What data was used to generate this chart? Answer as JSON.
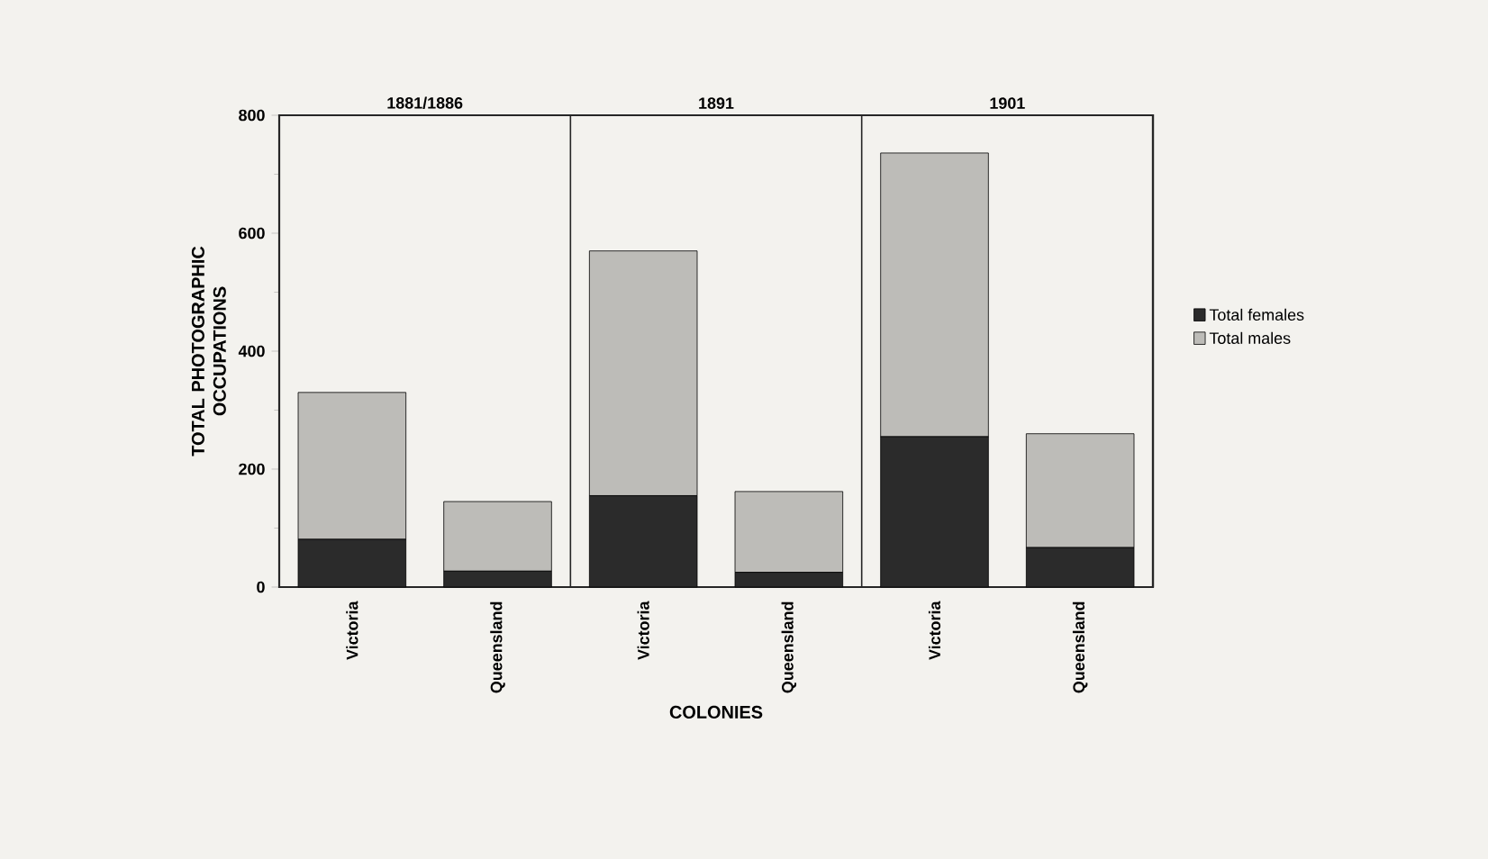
{
  "chart_data": {
    "type": "bar",
    "stacked": true,
    "ylabel": "TOTAL PHOTOGRAPHIC OCCUPATIONS",
    "xlabel": "COLONIES",
    "categories": [
      "Victoria",
      "Queensland",
      "Victoria",
      "Queensland",
      "Victoria",
      "Queensland"
    ],
    "series": [
      {
        "name": "Total females",
        "color": "#2b2b2b",
        "values": [
          81,
          27,
          155,
          25,
          255,
          67
        ]
      },
      {
        "name": "Total males",
        "color": "#bdbcb8",
        "values": [
          249,
          118,
          415,
          137,
          481,
          193
        ]
      }
    ],
    "ylim": [
      0,
      800
    ],
    "yticks": [
      0,
      200,
      400,
      600,
      800
    ],
    "legend": "right",
    "annotations": [
      "1881/1886",
      "1891",
      "1901"
    ]
  }
}
